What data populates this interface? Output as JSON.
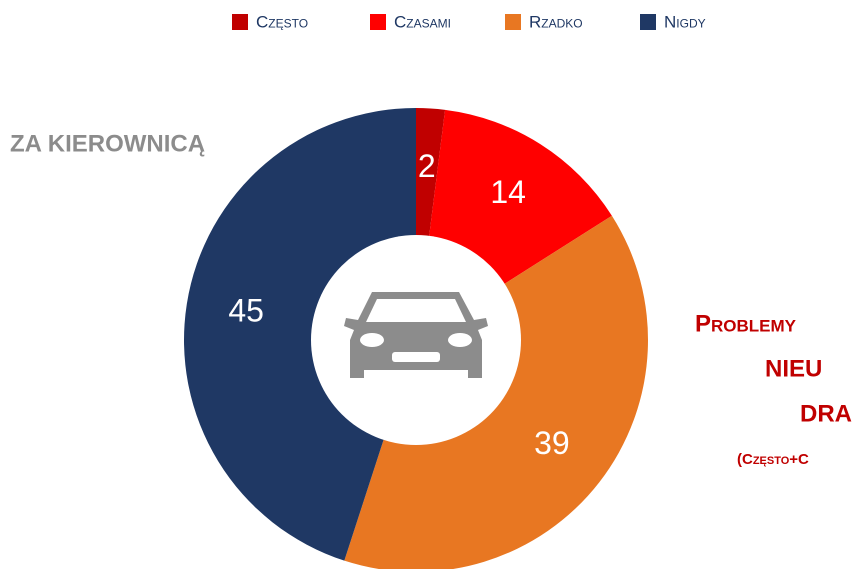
{
  "chart_data": {
    "type": "donut",
    "title": "Za kierownicą",
    "categories": [
      "Często",
      "Czasami",
      "Rzadko",
      "Nigdy"
    ],
    "values": [
      2,
      14,
      39,
      45
    ],
    "colors": [
      "#c00000",
      "#ff0000",
      "#e87722",
      "#1f3864"
    ],
    "legend": "top",
    "annotations": [
      "Problemy",
      "nieu",
      "dra",
      "(Często+C"
    ]
  }
}
